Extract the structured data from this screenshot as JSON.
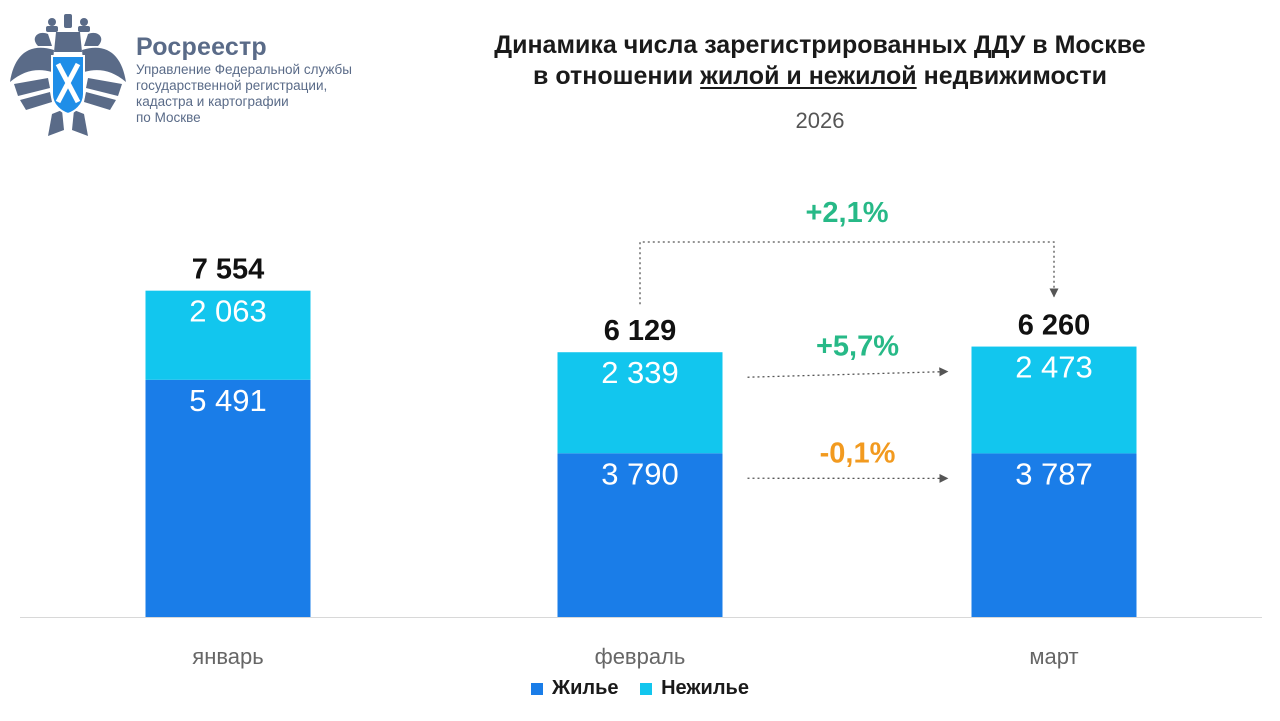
{
  "header": {
    "org_name": "Росреестр",
    "org_lines": [
      "Управление Федеральной службы",
      "государственной регистрации,",
      "кадастра и картографии",
      "по Москве"
    ]
  },
  "chart_data": {
    "type": "bar",
    "stacked": true,
    "title_line1": "Динамика числа зарегистрированных ДДУ в Москве",
    "title_line2_pre": "в отношении ",
    "title_line2_u1": "жилой и нежилой",
    "title_line2_post": " недвижимости",
    "subtitle": "2026",
    "categories": [
      "январь",
      "февраль",
      "март"
    ],
    "series": [
      {
        "name": "Жилье",
        "values": [
          5491,
          3790,
          3787
        ],
        "labels": [
          "5 491",
          "3 790",
          "3 787"
        ],
        "color": "#1a7de8"
      },
      {
        "name": "Нежилье",
        "values": [
          2063,
          2339,
          2473
        ],
        "labels": [
          "2 063",
          "2 339",
          "2 473"
        ],
        "color": "#12c6ee"
      }
    ],
    "totals": [
      7554,
      6129,
      6260
    ],
    "total_labels": [
      "7 554",
      "6 129",
      "6 260"
    ],
    "annotations": [
      {
        "text": "+2,1%",
        "from": "февраль",
        "to": "март",
        "target": "total",
        "color": "#27b987"
      },
      {
        "text": "+5,7%",
        "from": "февраль",
        "to": "март",
        "target": "Нежилье",
        "color": "#27b987"
      },
      {
        "text": "-0,1%",
        "from": "февраль",
        "to": "март",
        "target": "Жилье",
        "color": "#f29a1f"
      }
    ],
    "ylim": [
      0,
      8000
    ],
    "legend_position": "bottom"
  }
}
